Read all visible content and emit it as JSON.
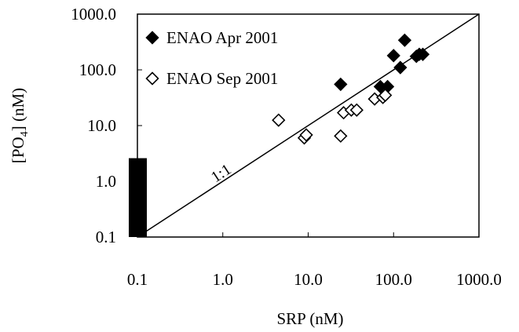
{
  "chart_data": {
    "type": "scatter",
    "title": "",
    "xlabel": "SRP (nM)",
    "ylabel_main": "[PO",
    "ylabel_sub": "4",
    "ylabel_tail": "] (nM)",
    "x_scale": "log",
    "y_scale": "log",
    "xlim": [
      0.1,
      1000
    ],
    "ylim": [
      0.1,
      1000
    ],
    "x_ticks": [
      "0.1",
      "1.0",
      "10.0",
      "100.0",
      "1000.0"
    ],
    "y_ticks": [
      "0.1",
      "1.0",
      "10.0",
      "100.0",
      "1000.0"
    ],
    "grid": false,
    "legend_position": "top-left",
    "series": [
      {
        "name": "ENAO Apr 2001",
        "marker": "filled-diamond",
        "color": "#000000",
        "points": [
          {
            "x": 24,
            "y": 55
          },
          {
            "x": 70,
            "y": 50
          },
          {
            "x": 85,
            "y": 50
          },
          {
            "x": 100,
            "y": 180
          },
          {
            "x": 120,
            "y": 110
          },
          {
            "x": 135,
            "y": 340
          },
          {
            "x": 185,
            "y": 175
          },
          {
            "x": 200,
            "y": 190
          },
          {
            "x": 220,
            "y": 190
          }
        ]
      },
      {
        "name": "ENAO Sep 2001",
        "marker": "open-diamond",
        "color": "#000000",
        "points": [
          {
            "x": 4.5,
            "y": 12.5
          },
          {
            "x": 9,
            "y": 6
          },
          {
            "x": 9.5,
            "y": 6.8
          },
          {
            "x": 24,
            "y": 6.5
          },
          {
            "x": 26,
            "y": 17
          },
          {
            "x": 32,
            "y": 19
          },
          {
            "x": 37,
            "y": 19
          },
          {
            "x": 60,
            "y": 30
          },
          {
            "x": 75,
            "y": 32
          },
          {
            "x": 80,
            "y": 35
          }
        ]
      }
    ],
    "reference_line": {
      "label": "1:1",
      "from": [
        0.1,
        0.1
      ],
      "to": [
        1000,
        1000
      ]
    },
    "detection_bar": {
      "x": 0.1,
      "y_min": 0.1,
      "y_max": 2.6,
      "color": "#000000"
    }
  }
}
